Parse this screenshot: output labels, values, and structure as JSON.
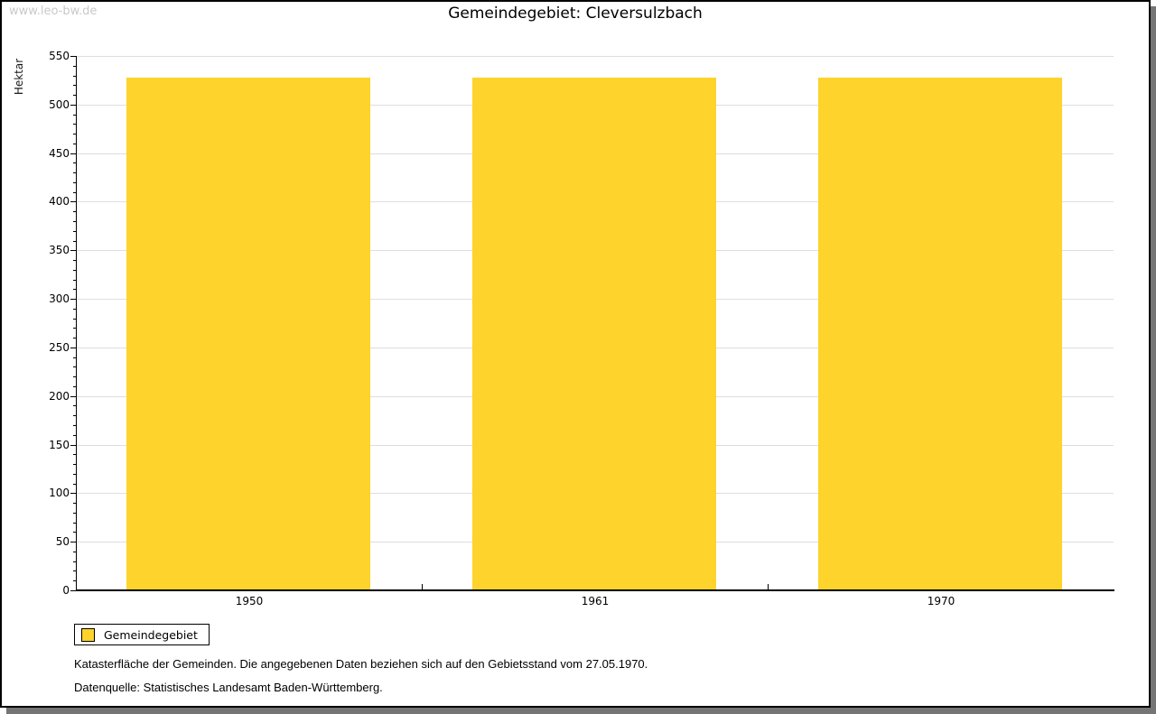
{
  "watermark": "www.leo-bw.de",
  "header": {
    "title": "Gemeindegebiet: Cleversulzbach"
  },
  "chart_data": {
    "type": "bar",
    "title": "Gemeindegebiet: Cleversulzbach",
    "categories": [
      "1950",
      "1961",
      "1970"
    ],
    "series": [
      {
        "name": "Gemeindegebiet",
        "values": [
          528,
          528,
          528
        ],
        "color": "#fdd32c"
      }
    ],
    "xlabel": "",
    "ylabel": "Hektar",
    "ylim": [
      0,
      550
    ],
    "y_major_step": 50,
    "y_minor_step": 10,
    "grid": true,
    "gridline_color": "#dedede",
    "legend_position": "bottom-left",
    "bar_width_fraction": 0.705
  },
  "legend": {
    "label": "Gemeindegebiet",
    "swatch_color": "#fdd32c"
  },
  "footnotes": {
    "line1": "Katasterfläche der Gemeinden. Die angegebenen Daten beziehen sich auf den Gebietsstand vom 27.05.1970.",
    "line2": "Datenquelle: Statistisches Landesamt Baden-Württemberg."
  },
  "colors": {
    "bar": "#fdd32c",
    "gridline": "#dedede",
    "shadow": "#757575",
    "watermark_text": "#c9c9c9"
  }
}
